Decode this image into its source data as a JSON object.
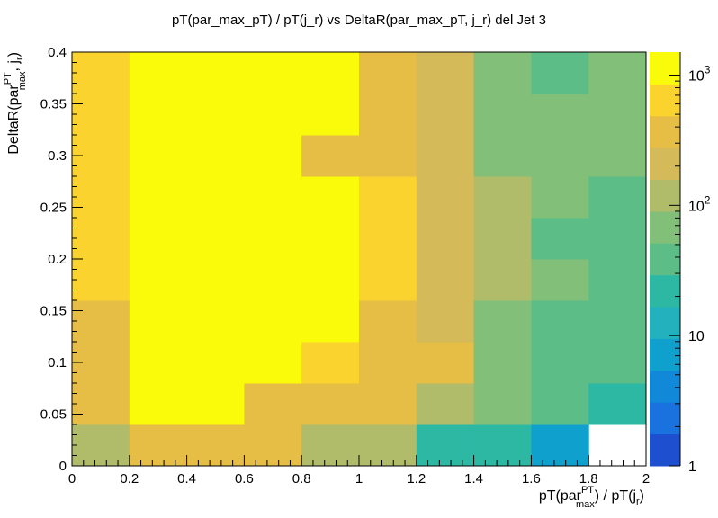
{
  "chart_data": {
    "type": "heatmap",
    "title": "pT(par_max_pT) / pT(j_r) vs DeltaR(par_max_pT, j_r) del Jet 3",
    "xlabel": {
      "pre": "pT(par",
      "sup": "PT",
      "sub": "max",
      "post": ") / pT(j",
      "sub2": "r",
      "end": ")"
    },
    "ylabel": {
      "pre": "DeltaR(par",
      "sup": "PT",
      "sub": "max",
      "post": ", j",
      "sub2": "r",
      "end": ")"
    },
    "xlim": [
      0,
      2
    ],
    "ylim": [
      0,
      0.4
    ],
    "x_edges": [
      0,
      0.2,
      0.4,
      0.6,
      0.8,
      1.0,
      1.2,
      1.4,
      1.6,
      1.8,
      2.0
    ],
    "y_edges": [
      0,
      0.04,
      0.08,
      0.12,
      0.16,
      0.2,
      0.24,
      0.28,
      0.32,
      0.36,
      0.4
    ],
    "x_ticks": [
      "0",
      "0.2",
      "0.4",
      "0.6",
      "0.8",
      "1",
      "1.2",
      "1.4",
      "1.6",
      "1.8",
      "2"
    ],
    "y_ticks": [
      "0",
      "0.05",
      "0.1",
      "0.15",
      "0.2",
      "0.25",
      "0.3",
      "0.35",
      "0.4"
    ],
    "z_scale": "log",
    "zlim": [
      1,
      1500
    ],
    "colorbar_ticks": [
      {
        "value": 1,
        "base": "1",
        "exp": ""
      },
      {
        "value": 10,
        "base": "10",
        "exp": ""
      },
      {
        "value": 100,
        "base": "10",
        "exp": "2"
      },
      {
        "value": 1000,
        "base": "10",
        "exp": "3"
      }
    ],
    "palette": [
      "#1d4fcf",
      "#1a72de",
      "#1188d8",
      "#0fa0ce",
      "#22b1bd",
      "#2db8a4",
      "#5cbd87",
      "#82bf79",
      "#b0bc6a",
      "#d4ba58",
      "#e6bd45",
      "#fbd32f",
      "#fafa0b"
    ],
    "values_rows_from_bottom": [
      [
        130,
        280,
        280,
        280,
        130,
        130,
        25,
        18,
        7,
        0
      ],
      [
        400,
        1000,
        1000,
        400,
        280,
        280,
        130,
        70,
        40,
        18
      ],
      [
        400,
        1500,
        1500,
        1000,
        500,
        400,
        280,
        70,
        40,
        30
      ],
      [
        280,
        1500,
        1500,
        1000,
        1000,
        400,
        200,
        70,
        40,
        30
      ],
      [
        500,
        1500,
        1500,
        1000,
        1000,
        500,
        200,
        130,
        70,
        40
      ],
      [
        500,
        1500,
        1500,
        1000,
        1000,
        500,
        200,
        130,
        40,
        40
      ],
      [
        500,
        1500,
        1500,
        1000,
        1000,
        500,
        200,
        130,
        70,
        40
      ],
      [
        500,
        1500,
        1500,
        1000,
        280,
        280,
        200,
        70,
        70,
        70
      ],
      [
        500,
        1500,
        1500,
        1000,
        1000,
        400,
        200,
        70,
        70,
        70
      ],
      [
        500,
        1500,
        1500,
        1000,
        1000,
        400,
        200,
        70,
        40,
        70
      ]
    ],
    "grid": false,
    "legend": "colorbar-right"
  }
}
